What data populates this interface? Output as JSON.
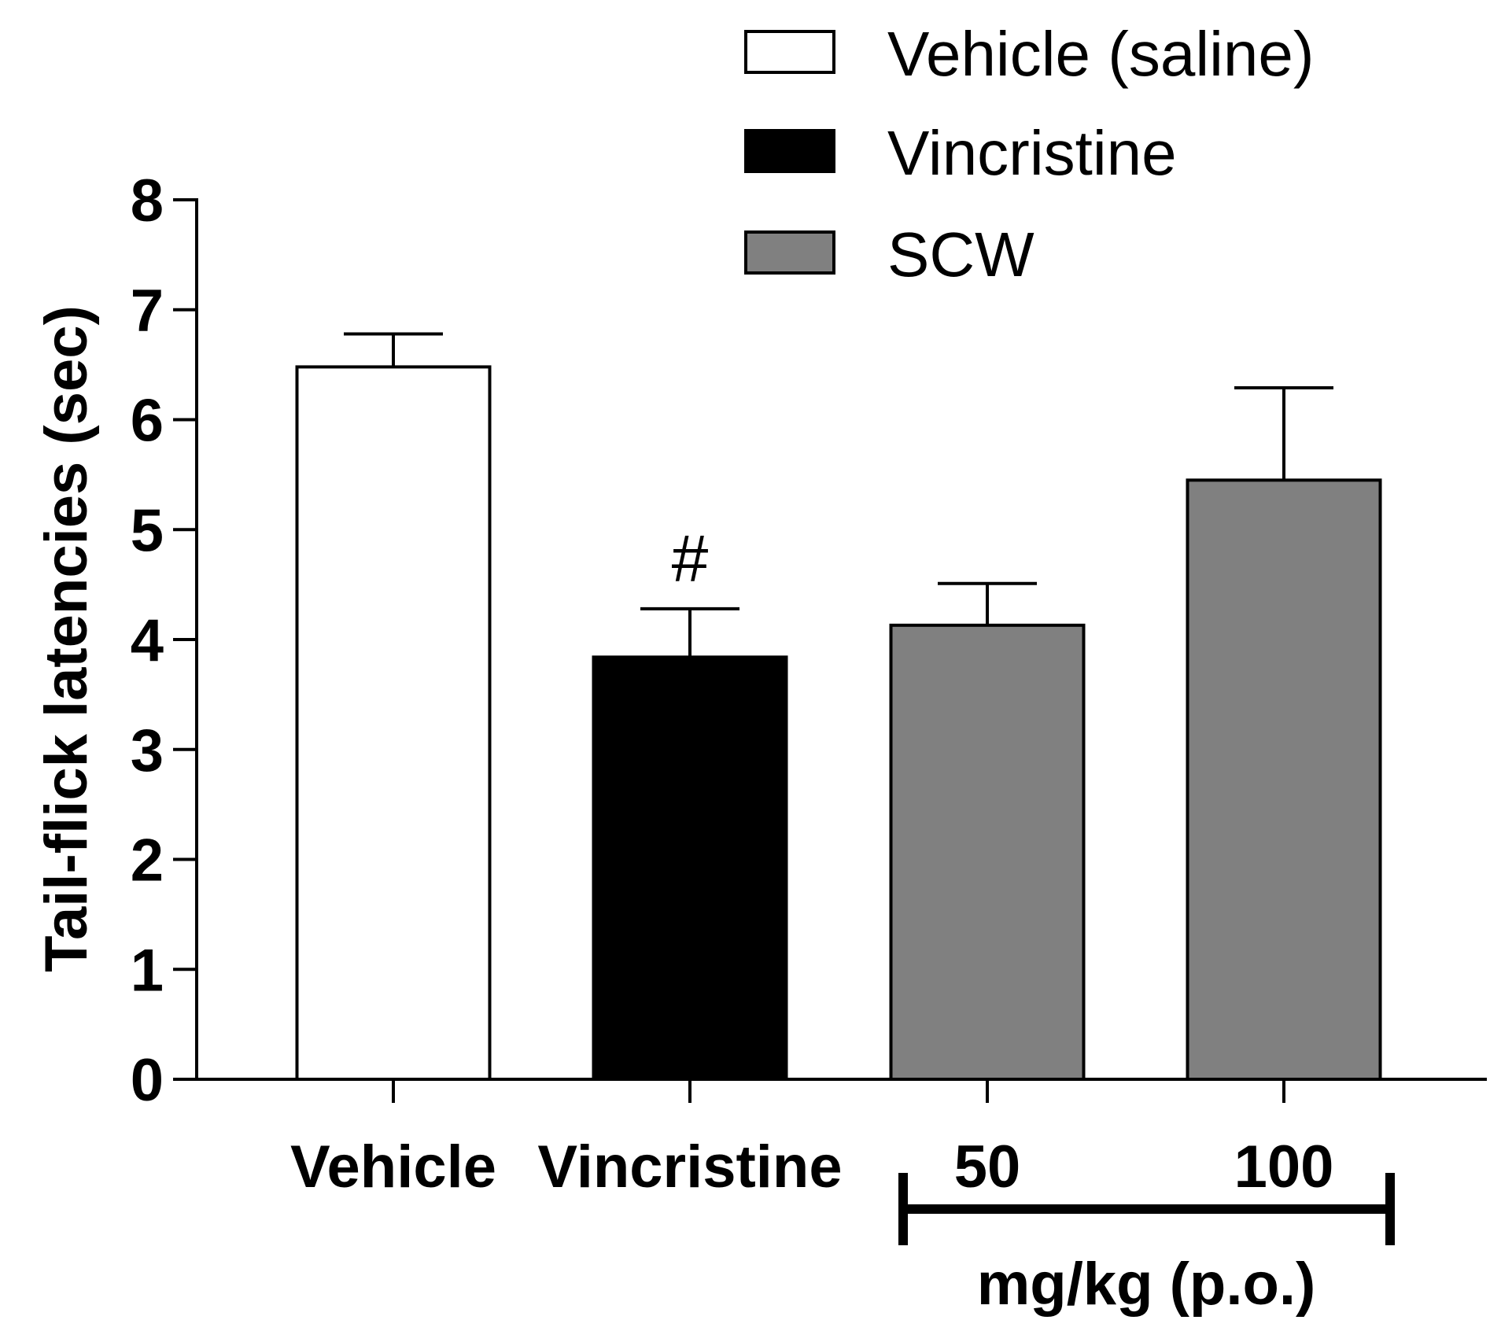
{
  "chart_data": {
    "type": "bar",
    "ylabel": "Tail-flick latencies (sec)",
    "ylim": [
      0,
      8
    ],
    "yticks": [
      0,
      1,
      2,
      3,
      4,
      5,
      6,
      7,
      8
    ],
    "categories": [
      "Vehicle",
      "Vincristine",
      "50",
      "100"
    ],
    "values": [
      6.48,
      3.84,
      4.13,
      5.45
    ],
    "errors": [
      0.3,
      0.44,
      0.38,
      0.84
    ],
    "bar_groups": [
      "Vehicle (saline)",
      "Vincristine",
      "SCW",
      "SCW"
    ],
    "annotations": [
      {
        "category": "Vincristine",
        "text": "#"
      }
    ],
    "dose_bracket": {
      "categories": [
        "50",
        "100"
      ],
      "label": "mg/kg (p.o.)"
    },
    "legend": [
      {
        "label": "Vehicle (saline)",
        "color": "#ffffff"
      },
      {
        "label": "Vincristine",
        "color": "#000000"
      },
      {
        "label": "SCW",
        "color": "#808080"
      }
    ]
  }
}
